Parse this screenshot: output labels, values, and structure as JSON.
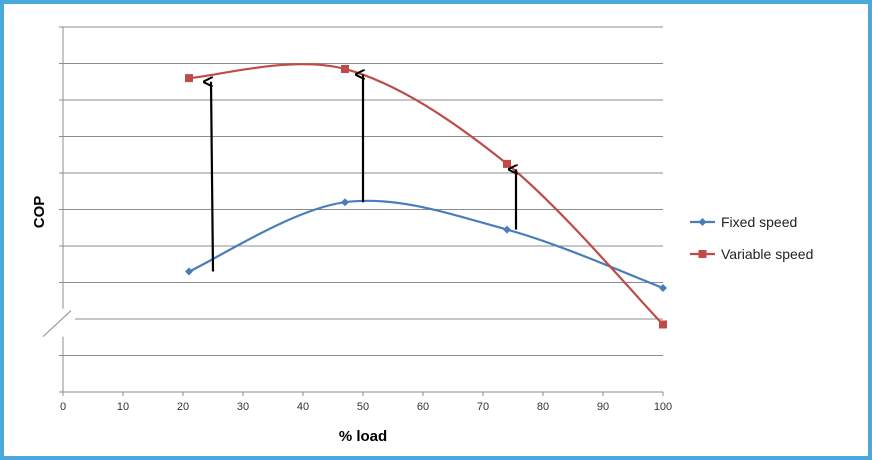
{
  "chart_data": {
    "type": "line",
    "title": "",
    "xlabel": "% load",
    "ylabel": "COP",
    "xlim": [
      0,
      100
    ],
    "ylim": [
      0,
      10
    ],
    "grid": true,
    "x_ticks": [
      0,
      10,
      20,
      30,
      40,
      50,
      60,
      70,
      80,
      90,
      100
    ],
    "y_tick_labels_shown": false,
    "axis_break": true,
    "legend_position": "right",
    "series": [
      {
        "name": "Fixed speed",
        "color": "#4a7ebb",
        "marker": "diamond",
        "x": [
          21,
          47,
          74,
          100
        ],
        "y": [
          3.3,
          5.2,
          4.45,
          2.85
        ]
      },
      {
        "name": "Variable speed",
        "color": "#be4b48",
        "marker": "square",
        "x": [
          21,
          47,
          74,
          100
        ],
        "y": [
          8.6,
          8.85,
          6.25,
          1.85
        ]
      }
    ],
    "annotations": [
      {
        "type": "arrow",
        "x": 25,
        "y_from": 3.3,
        "y_to": 8.5
      },
      {
        "type": "arrow",
        "x": 50,
        "y_from": 5.2,
        "y_to": 8.7
      },
      {
        "type": "arrow",
        "x": 75.5,
        "y_from": 4.45,
        "y_to": 6.1
      }
    ]
  }
}
